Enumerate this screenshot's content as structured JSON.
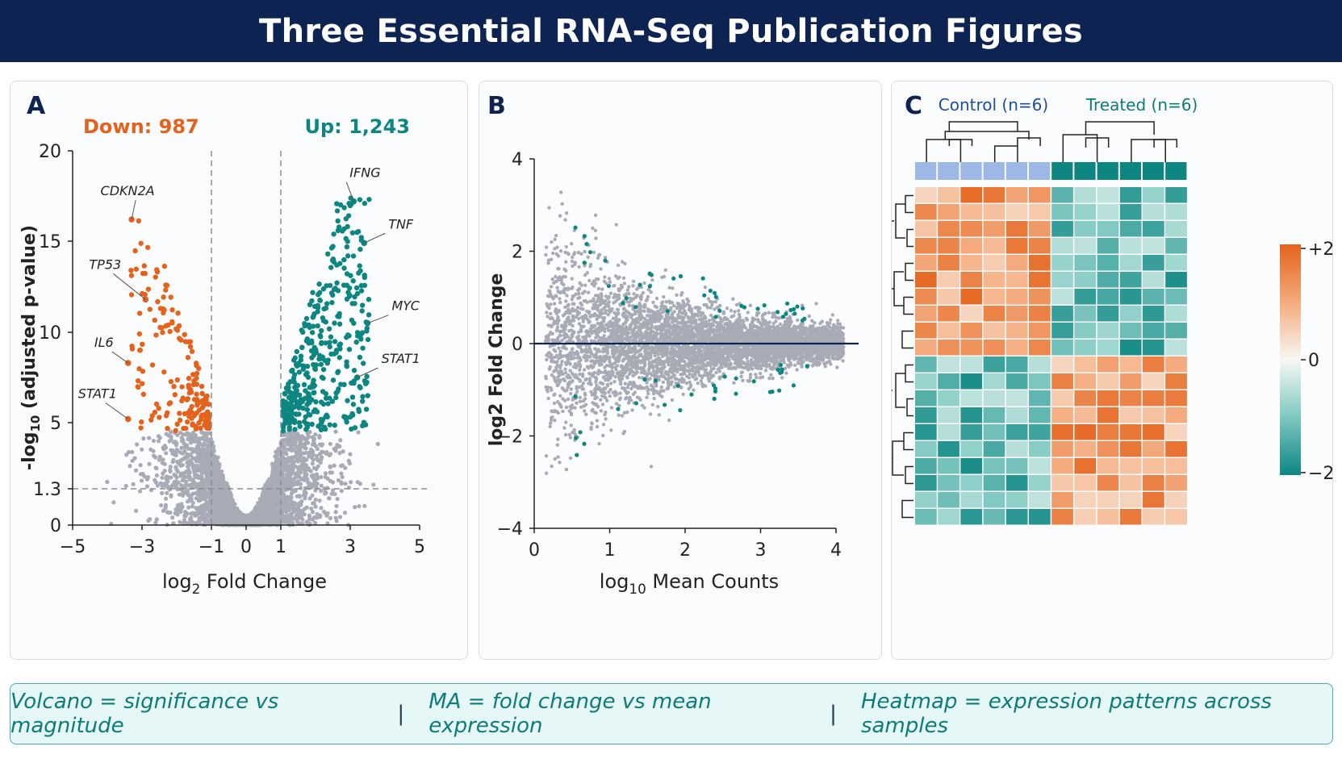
{
  "page_title": "Three Essential RNA-Seq Publication Figures",
  "colors": {
    "down": "#e4621b",
    "up": "#0d8682",
    "ns": "#a8abb6",
    "navy": "#0d2352",
    "control_bar": "#9db7e6",
    "treated_bar": "#0d8682"
  },
  "chart_data": [
    {
      "type": "scatter",
      "panel_label": "A",
      "title": "",
      "xlabel": "log2 Fold Change",
      "ylabel": "-log10 (adjusted p-value)",
      "xlim": [
        -5,
        5
      ],
      "ylim": [
        0,
        20
      ],
      "xticks": [
        -5,
        -3,
        -1,
        0,
        1,
        3,
        5
      ],
      "yticks": [
        0,
        1.3,
        5,
        10,
        15,
        20
      ],
      "thresholds": {
        "fold_change": [
          -1,
          1
        ],
        "pvalue": 1.3
      },
      "counts": {
        "down_label": "Down: 987",
        "up_label": "Up: 1,243"
      },
      "labeled_genes": [
        {
          "gene": "CDKN2A",
          "x": -3.3,
          "y": 16.2
        },
        {
          "gene": "TP53",
          "x": -2.9,
          "y": 11.8
        },
        {
          "gene": "IL6",
          "x": -3.4,
          "y": 8.3
        },
        {
          "gene": "STAT1",
          "x": -3.4,
          "y": 5.2
        },
        {
          "gene": "IFNG",
          "x": 3.1,
          "y": 17.2
        },
        {
          "gene": "TNF",
          "x": 3.4,
          "y": 14.9
        },
        {
          "gene": "MYC",
          "x": 3.5,
          "y": 10.5
        },
        {
          "gene": "STAT1",
          "x": 3.2,
          "y": 7.5
        }
      ],
      "grid": false
    },
    {
      "type": "scatter",
      "panel_label": "B",
      "title": "",
      "xlabel": "log10 Mean Counts",
      "ylabel": "log2 Fold Change",
      "xlim": [
        0,
        4
      ],
      "ylim": [
        -4,
        4
      ],
      "xticks": [
        0,
        1,
        2,
        3,
        4
      ],
      "yticks": [
        -4,
        -2,
        0,
        2,
        4
      ],
      "baseline": 0,
      "grid": false
    },
    {
      "type": "heatmap",
      "panel_label": "C",
      "groups": [
        {
          "name": "Control (n=6)",
          "samples": 6
        },
        {
          "name": "Treated (n=6)",
          "samples": 6
        }
      ],
      "genes": 20,
      "value_range": [
        -2,
        2
      ],
      "colorbar_ticks": [
        "+2",
        "0",
        "−2"
      ],
      "dendrograms": {
        "rows": true,
        "columns": true
      },
      "clusters": [
        {
          "rows": 10,
          "pattern": "up in Control, down in Treated"
        },
        {
          "rows": 10,
          "pattern": "down in Control, up in Treated"
        }
      ]
    }
  ],
  "footer": {
    "item1": "Volcano = significance vs magnitude",
    "item2": "MA = fold change vs mean expression",
    "item3": "Heatmap = expression patterns across samples",
    "separator": "|"
  }
}
